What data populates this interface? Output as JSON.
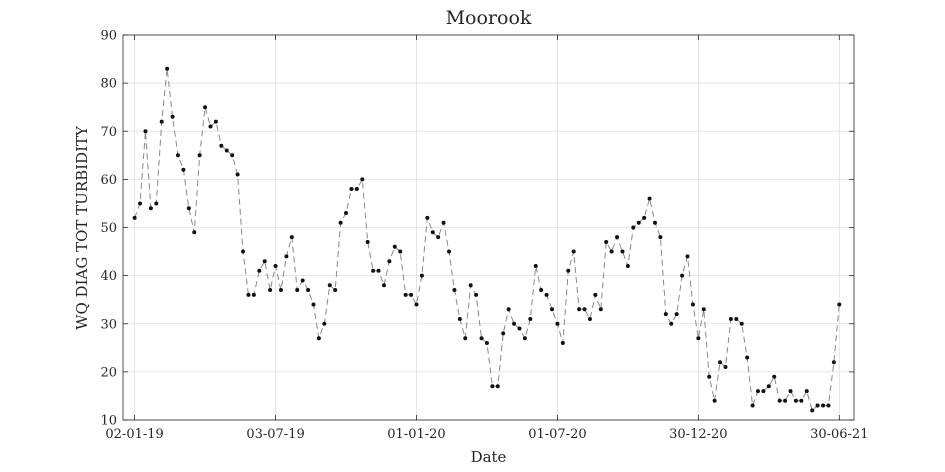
{
  "chart_data": {
    "type": "line",
    "title": "Moorook",
    "xlabel": "Date",
    "ylabel": "WQ DIAG TOT TURBIDITY",
    "xlim": [
      "2018-12-18",
      "2021-07-19"
    ],
    "ylim": [
      10,
      90
    ],
    "yticks": [
      10,
      20,
      30,
      40,
      50,
      60,
      70,
      80,
      90
    ],
    "xticks": [
      {
        "date": "2019-01-02",
        "label": "02-01-19"
      },
      {
        "date": "2019-07-03",
        "label": "03-07-19"
      },
      {
        "date": "2020-01-01",
        "label": "01-01-20"
      },
      {
        "date": "2020-07-01",
        "label": "01-07-20"
      },
      {
        "date": "2020-12-30",
        "label": "30-12-20"
      },
      {
        "date": "2021-06-30",
        "label": "30-06-21"
      }
    ],
    "grid": true,
    "line_color": "#888888",
    "line_style": "dashed",
    "marker_color": "#111111",
    "series": [
      {
        "x": [
          "2019-01-02",
          "2019-01-09",
          "2019-01-16",
          "2019-01-23",
          "2019-01-30",
          "2019-02-06",
          "2019-02-13",
          "2019-02-20",
          "2019-02-27",
          "2019-03-06",
          "2019-03-13",
          "2019-03-20",
          "2019-03-27",
          "2019-04-03",
          "2019-04-10",
          "2019-04-17",
          "2019-04-24",
          "2019-05-01",
          "2019-05-08",
          "2019-05-15",
          "2019-05-22",
          "2019-05-29",
          "2019-06-05",
          "2019-06-12",
          "2019-06-19",
          "2019-06-26",
          "2019-07-03",
          "2019-07-10",
          "2019-07-17",
          "2019-07-24",
          "2019-07-31",
          "2019-08-07",
          "2019-08-14",
          "2019-08-21",
          "2019-08-28",
          "2019-09-04",
          "2019-09-11",
          "2019-09-18",
          "2019-09-25",
          "2019-10-02",
          "2019-10-09",
          "2019-10-16",
          "2019-10-23",
          "2019-10-30",
          "2019-11-06",
          "2019-11-13",
          "2019-11-20",
          "2019-11-27",
          "2019-12-04",
          "2019-12-11",
          "2019-12-18",
          "2019-12-25",
          "2020-01-01",
          "2020-01-08",
          "2020-01-15",
          "2020-01-22",
          "2020-01-29",
          "2020-02-05",
          "2020-02-12",
          "2020-02-19",
          "2020-02-26",
          "2020-03-04",
          "2020-03-11",
          "2020-03-18",
          "2020-03-25",
          "2020-04-01",
          "2020-04-08",
          "2020-04-15",
          "2020-04-22",
          "2020-04-29",
          "2020-05-06",
          "2020-05-13",
          "2020-05-20",
          "2020-05-27",
          "2020-06-03",
          "2020-06-10",
          "2020-06-17",
          "2020-06-24",
          "2020-07-01",
          "2020-07-08",
          "2020-07-15",
          "2020-07-22",
          "2020-07-29",
          "2020-08-05",
          "2020-08-12",
          "2020-08-19",
          "2020-08-26",
          "2020-09-02",
          "2020-09-09",
          "2020-09-16",
          "2020-09-23",
          "2020-09-30",
          "2020-10-07",
          "2020-10-14",
          "2020-10-21",
          "2020-10-28",
          "2020-11-04",
          "2020-11-11",
          "2020-11-18",
          "2020-11-25",
          "2020-12-02",
          "2020-12-09",
          "2020-12-16",
          "2020-12-23",
          "2020-12-30",
          "2021-01-06",
          "2021-01-13",
          "2021-01-20",
          "2021-01-27",
          "2021-02-03",
          "2021-02-10",
          "2021-02-17",
          "2021-02-24",
          "2021-03-03",
          "2021-03-10",
          "2021-03-17",
          "2021-03-24",
          "2021-03-31",
          "2021-04-07",
          "2021-04-14",
          "2021-04-21",
          "2021-04-28",
          "2021-05-05",
          "2021-05-12",
          "2021-05-19",
          "2021-05-26",
          "2021-06-02",
          "2021-06-09",
          "2021-06-16",
          "2021-06-23",
          "2021-06-30"
        ],
        "y": [
          52,
          55,
          70,
          54,
          55,
          72,
          83,
          73,
          65,
          62,
          54,
          49,
          65,
          75,
          71,
          72,
          67,
          66,
          65,
          61,
          45,
          36,
          36,
          41,
          43,
          37,
          42,
          37,
          44,
          48,
          37,
          39,
          37,
          34,
          27,
          30,
          38,
          37,
          51,
          53,
          58,
          58,
          60,
          47,
          41,
          41,
          38,
          43,
          46,
          45,
          36,
          36,
          34,
          40,
          52,
          49,
          48,
          51,
          45,
          37,
          31,
          27,
          38,
          36,
          27,
          26,
          17,
          17,
          28,
          33,
          30,
          29,
          27,
          31,
          42,
          37,
          36,
          33,
          30,
          26,
          41,
          45,
          33,
          33,
          31,
          36,
          33,
          47,
          45,
          48,
          45,
          42,
          50,
          51,
          52,
          56,
          51,
          48,
          32,
          30,
          32,
          40,
          44,
          34,
          27,
          33,
          19,
          14,
          22,
          21,
          31,
          31,
          30,
          23,
          13,
          16,
          16,
          17,
          19,
          14,
          14,
          16,
          14,
          14,
          16,
          12,
          13,
          13,
          13,
          22,
          34
        ]
      }
    ]
  }
}
